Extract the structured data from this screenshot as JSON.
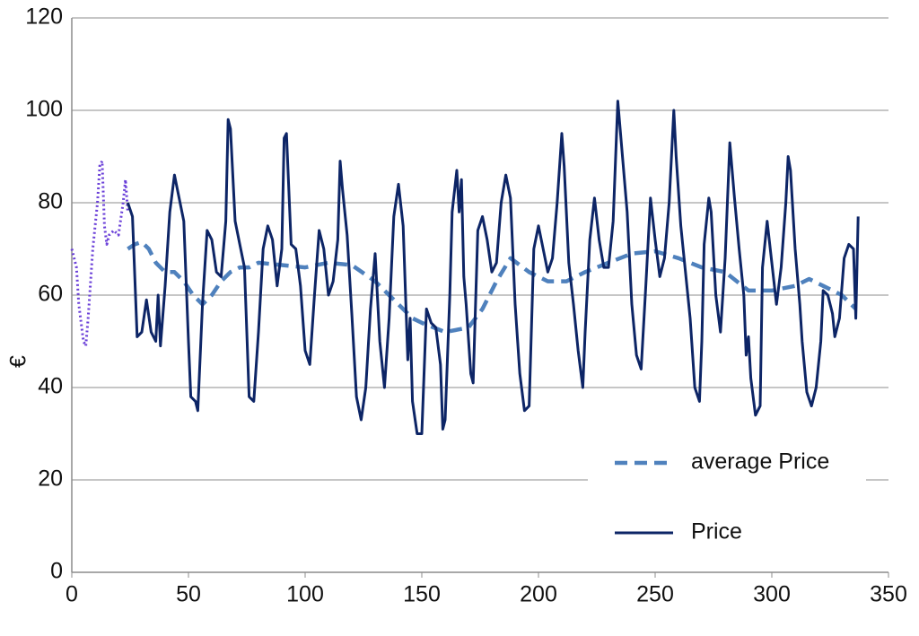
{
  "chart_data": {
    "type": "line",
    "y_label": "€",
    "xlim": [
      0,
      350
    ],
    "xticks": [
      0,
      50,
      100,
      150,
      200,
      250,
      300,
      350
    ],
    "ylim": [
      0,
      120
    ],
    "yticks": [
      0,
      20,
      40,
      60,
      80,
      100,
      120
    ],
    "grid": true,
    "legend": "lower right",
    "series": [
      {
        "color": "#6a3fd8",
        "style": "dotted",
        "x": [
          0,
          2,
          3,
          5,
          6,
          7,
          9,
          11,
          12,
          13,
          14,
          15,
          16,
          18,
          20,
          22,
          23,
          24
        ],
        "values": [
          70,
          66,
          58,
          50,
          49,
          55,
          70,
          80,
          88,
          89,
          75,
          71,
          73,
          74,
          73,
          80,
          85,
          78
        ]
      },
      {
        "name": "average Price",
        "color": "#4f81bd",
        "style": "dashed",
        "x": [
          24,
          27,
          30,
          33,
          36,
          40,
          44,
          48,
          52,
          56,
          60,
          64,
          68,
          72,
          76,
          80,
          90,
          100,
          110,
          120,
          130,
          140,
          146,
          150,
          160,
          170,
          176,
          182,
          188,
          196,
          204,
          212,
          220,
          230,
          240,
          250,
          260,
          270,
          280,
          290,
          300,
          310,
          316,
          322,
          330,
          336
        ],
        "values": [
          70,
          71,
          71.5,
          70,
          67,
          65,
          65,
          63,
          60,
          58,
          60,
          63,
          65,
          66,
          66,
          67,
          66.5,
          66,
          67,
          66.5,
          63,
          58,
          55,
          54,
          52,
          53,
          57,
          63,
          68,
          65,
          63,
          63,
          65,
          67,
          69,
          69.5,
          68,
          66,
          65,
          61,
          61,
          62,
          63.5,
          62,
          60,
          57
        ]
      },
      {
        "name": "Price",
        "color": "#0d2566",
        "style": "solid",
        "x": [
          24,
          26,
          28,
          30,
          32,
          34,
          36,
          37,
          38,
          40,
          42,
          44,
          46,
          48,
          50,
          51,
          53,
          54,
          56,
          58,
          60,
          62,
          64,
          66,
          67,
          68,
          70,
          72,
          74,
          76,
          78,
          80,
          82,
          84,
          86,
          88,
          90,
          91,
          92,
          94,
          96,
          98,
          100,
          102,
          104,
          106,
          108,
          110,
          112,
          114,
          115,
          116,
          118,
          120,
          122,
          124,
          126,
          128,
          130,
          132,
          134,
          136,
          138,
          140,
          142,
          144,
          145,
          146,
          148,
          150,
          152,
          154,
          156,
          158,
          159,
          160,
          162,
          163,
          165,
          166,
          167,
          168,
          169,
          171,
          172,
          174,
          176,
          178,
          180,
          182,
          184,
          186,
          188,
          190,
          192,
          194,
          196,
          198,
          200,
          202,
          204,
          206,
          208,
          210,
          211,
          213,
          215,
          217,
          219,
          220,
          222,
          224,
          226,
          228,
          230,
          232,
          234,
          236,
          238,
          240,
          242,
          244,
          246,
          248,
          250,
          252,
          254,
          256,
          258,
          259,
          261,
          263,
          265,
          267,
          269,
          270,
          271,
          273,
          274,
          276,
          278,
          280,
          282,
          284,
          286,
          288,
          289,
          290,
          291,
          293,
          295,
          296,
          298,
          300,
          302,
          304,
          306,
          307,
          308,
          310,
          312,
          313,
          315,
          317,
          319,
          321,
          322,
          324,
          326,
          327,
          329,
          331,
          333,
          335,
          336,
          337
        ],
        "values": [
          80,
          77,
          51,
          52,
          59,
          52,
          50,
          60,
          49,
          62,
          78,
          86,
          81,
          76,
          50,
          38,
          37,
          35,
          58,
          74,
          72,
          65,
          64,
          76,
          98,
          96,
          76,
          71,
          66,
          38,
          37,
          52,
          70,
          75,
          72,
          62,
          70,
          94,
          95,
          71,
          70,
          62,
          48,
          45,
          60,
          74,
          70,
          60,
          63,
          72,
          89,
          83,
          73,
          56,
          38,
          33,
          40,
          57,
          69,
          50,
          40,
          55,
          77,
          84,
          75,
          46,
          55,
          37,
          30,
          30,
          57,
          54,
          53,
          45,
          31,
          33,
          60,
          78,
          87,
          78,
          85,
          64,
          58,
          43,
          41,
          74,
          77,
          72,
          65,
          67,
          80,
          86,
          81,
          58,
          43,
          35,
          36,
          70,
          75,
          70,
          65,
          68,
          80,
          95,
          88,
          67,
          58,
          48,
          40,
          52,
          72,
          81,
          72,
          66,
          66,
          76,
          102,
          90,
          78,
          58,
          47,
          44,
          62,
          81,
          72,
          64,
          68,
          80,
          100,
          90,
          75,
          65,
          55,
          40,
          37,
          50,
          71,
          81,
          78,
          60,
          52,
          68,
          93,
          81,
          70,
          60,
          47,
          51,
          42,
          34,
          36,
          66,
          76,
          67,
          58,
          66,
          80,
          90,
          87,
          70,
          58,
          50,
          39,
          36,
          40,
          50,
          61,
          60,
          56,
          51,
          55,
          68,
          71,
          70,
          55,
          77
        ]
      }
    ]
  }
}
